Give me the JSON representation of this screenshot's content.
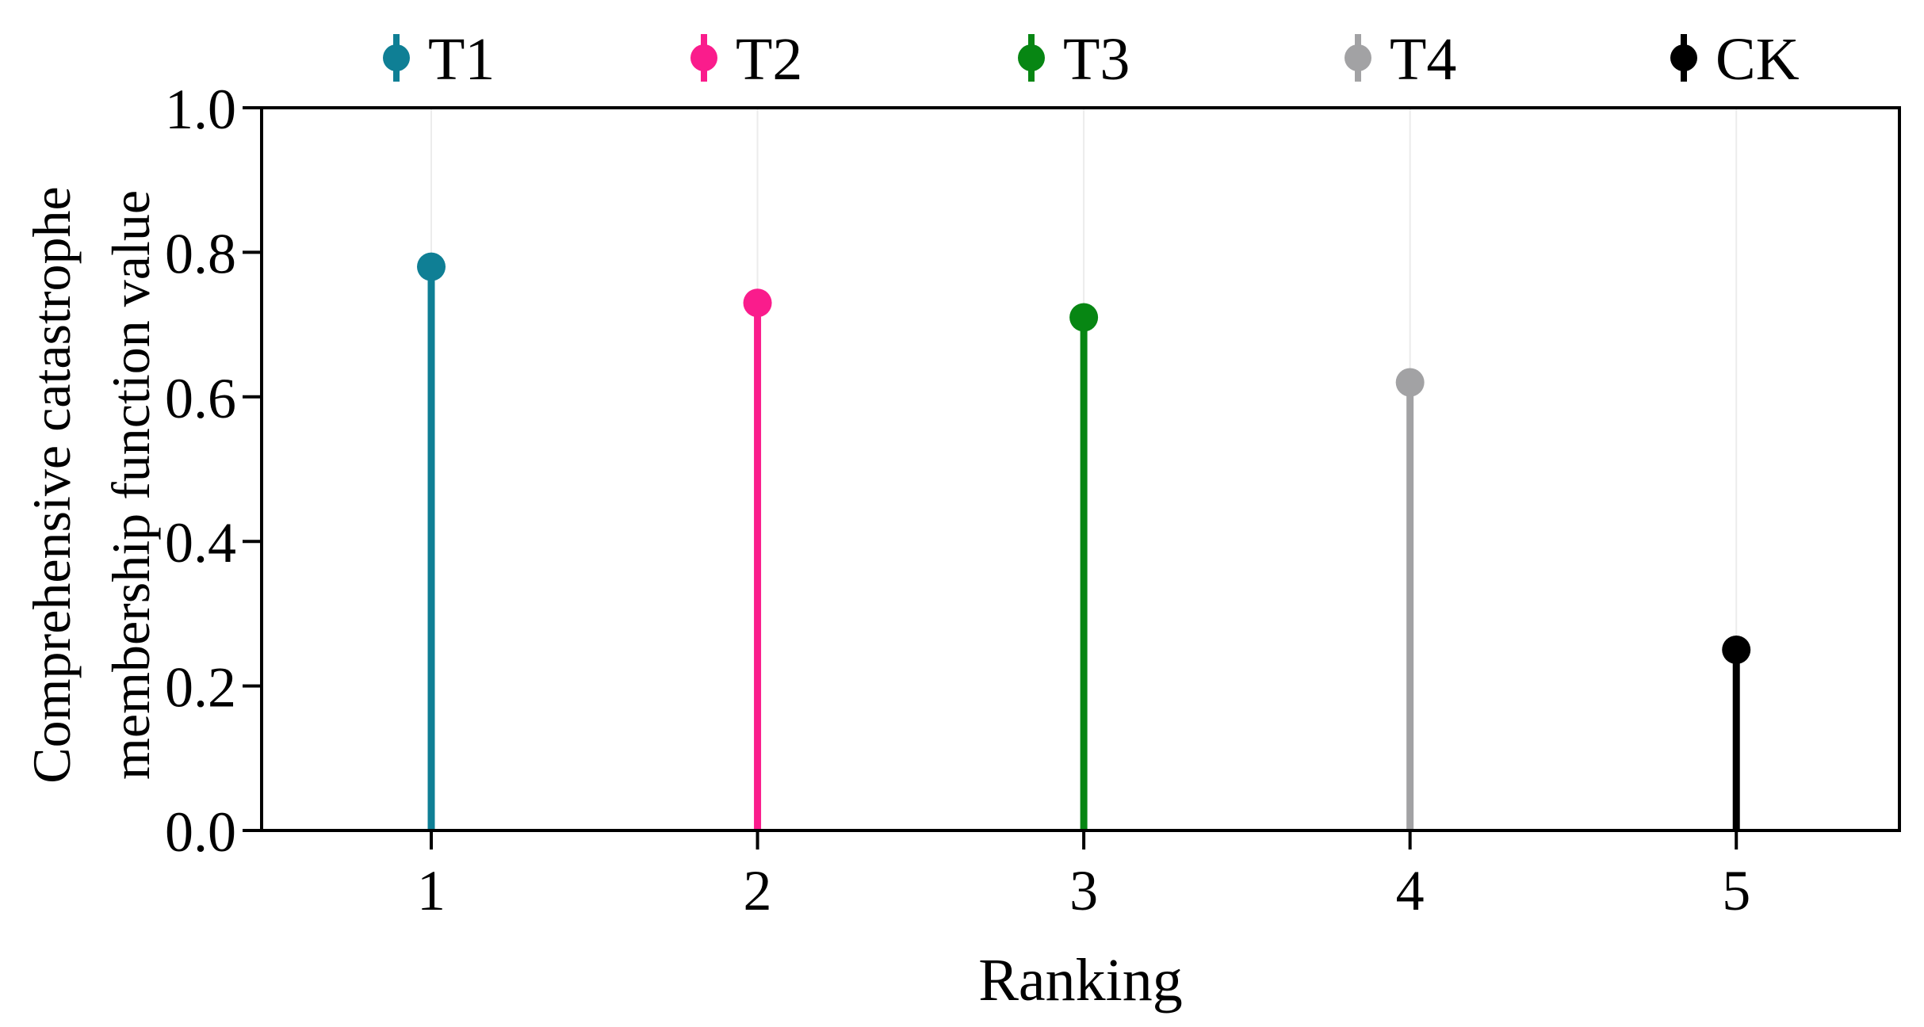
{
  "chart_data": {
    "type": "lollipop",
    "categories": [
      "1",
      "2",
      "3",
      "4",
      "5"
    ],
    "x": [
      1,
      2,
      3,
      4,
      5
    ],
    "series": [
      {
        "name": "T1",
        "x": 1,
        "value": 0.78,
        "color": "#0f7f95"
      },
      {
        "name": "T2",
        "x": 2,
        "value": 0.73,
        "color": "#fa1c8c"
      },
      {
        "name": "T3",
        "x": 3,
        "value": 0.71,
        "color": "#078613"
      },
      {
        "name": "T4",
        "x": 4,
        "value": 0.62,
        "color": "#a2a2a4"
      },
      {
        "name": "CK",
        "x": 5,
        "value": 0.25,
        "color": "#000000"
      }
    ],
    "xlabel": "Ranking",
    "ylabel_lines": [
      "Comprehensive catastrophe",
      "membership function value"
    ],
    "ylim": [
      0.0,
      1.0
    ],
    "xlim": [
      0.48,
      5.5
    ],
    "yticks": [
      "0.0",
      "0.2",
      "0.4",
      "0.6",
      "0.8",
      "1.0"
    ],
    "xticks": [
      "1",
      "2",
      "3",
      "4",
      "5"
    ],
    "grid": "vertical-light",
    "legend_position": "top"
  }
}
